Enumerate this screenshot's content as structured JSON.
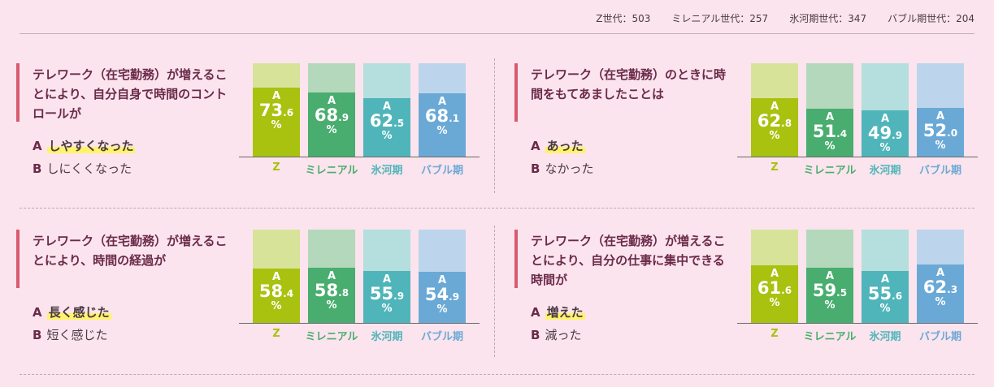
{
  "legend": [
    {
      "label": "Z世代：503"
    },
    {
      "label": "ミレニアル世代：257"
    },
    {
      "label": "氷河期世代：347"
    },
    {
      "label": "バブル期世代：204"
    }
  ],
  "colors": {
    "z": {
      "fill": "#a8c20f",
      "bg": "#d8e39a",
      "text": "#a8c20f"
    },
    "millennial": {
      "fill": "#48ad6e",
      "bg": "#b3d8bb",
      "text": "#48ad6e"
    },
    "hyogaki": {
      "fill": "#4fb5ba",
      "bg": "#b5dede",
      "text": "#4fb5ba"
    },
    "bubble": {
      "fill": "#6aa9d6",
      "bg": "#bcd5ec",
      "text": "#6aa9d6"
    },
    "accent": "#d85b70"
  },
  "bar_label_prefix": "A",
  "bar_label_suffix": "%",
  "chart_data": [
    {
      "type": "bar",
      "question": "テレワーク（在宅勤務）が増えることにより、自分自身で時間のコントロールが",
      "answer_a": "しやすくなった",
      "answer_b": "しにくくなった",
      "categories": [
        "Z",
        "ミレニアル",
        "氷河期",
        "バブル期"
      ],
      "values": [
        73.6,
        68.9,
        62.5,
        68.1
      ],
      "ylim": [
        0,
        100
      ]
    },
    {
      "type": "bar",
      "question": "テレワーク（在宅勤務）のときに時間をもてあましたことは",
      "answer_a": "あった",
      "answer_b": "なかった",
      "categories": [
        "Z",
        "ミレニアル",
        "氷河期",
        "バブル期"
      ],
      "values": [
        62.8,
        51.4,
        49.9,
        52.0
      ],
      "ylim": [
        0,
        100
      ]
    },
    {
      "type": "bar",
      "question": "テレワーク（在宅勤務）が増えることにより、時間の経過が",
      "answer_a": "長く感じた",
      "answer_b": "短く感じた",
      "categories": [
        "Z",
        "ミレニアル",
        "氷河期",
        "バブル期"
      ],
      "values": [
        58.4,
        58.8,
        55.9,
        54.9
      ],
      "ylim": [
        0,
        100
      ]
    },
    {
      "type": "bar",
      "question": "テレワーク（在宅勤務）が増えることにより、自分の仕事に集中できる時間が",
      "answer_a": "増えた",
      "answer_b": "減った",
      "categories": [
        "Z",
        "ミレニアル",
        "氷河期",
        "バブル期"
      ],
      "values": [
        61.6,
        59.5,
        55.6,
        62.3
      ],
      "ylim": [
        0,
        100
      ]
    }
  ]
}
